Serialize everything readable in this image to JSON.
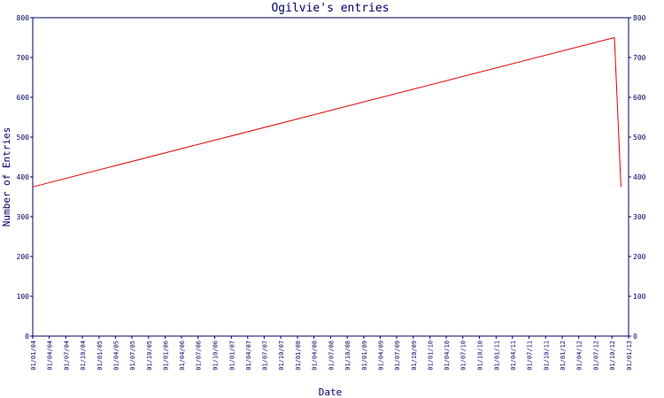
{
  "chart_data": {
    "type": "line",
    "title": "Ogilvie's entries",
    "xlabel": "Date",
    "ylabel": "Number of Entries",
    "ylim": [
      0,
      800
    ],
    "y_ticks": [
      0,
      100,
      200,
      300,
      400,
      500,
      600,
      700,
      800
    ],
    "xlim": [
      "2004-01-01",
      "2013-01-01"
    ],
    "x_tick_labels": [
      "01/01/04",
      "01/04/04",
      "01/07/04",
      "01/10/04",
      "01/01/05",
      "01/04/05",
      "01/07/05",
      "01/10/05",
      "01/01/06",
      "01/04/06",
      "01/07/06",
      "01/10/06",
      "01/01/07",
      "01/04/07",
      "01/07/07",
      "01/10/07",
      "01/01/08",
      "01/04/08",
      "01/07/08",
      "01/10/08",
      "01/01/09",
      "01/04/09",
      "01/07/09",
      "01/10/09",
      "01/01/10",
      "01/04/10",
      "01/07/10",
      "01/10/10",
      "01/01/11",
      "01/04/11",
      "01/07/11",
      "01/10/11",
      "01/01/12",
      "01/04/12",
      "01/07/12",
      "01/10/12",
      "01/01/13"
    ],
    "right_axis_mirror": true,
    "grid": false,
    "series": [
      {
        "color": "#dd0000",
        "points": [
          {
            "x": "2004-01-01",
            "y": 375
          },
          {
            "x": "2012-10-15",
            "y": 750
          },
          {
            "x": "2012-11-20",
            "y": 375
          }
        ]
      }
    ],
    "colors": {
      "axis": "#000066",
      "text": "#000066",
      "background": "#ffffff"
    }
  }
}
